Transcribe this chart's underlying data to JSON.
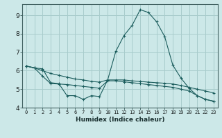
{
  "xlabel": "Humidex (Indice chaleur)",
  "ylabel": "",
  "background_color": "#cce8e8",
  "line_color": "#1a5c5c",
  "grid_color": "#a8cccc",
  "xlim": [
    -0.5,
    23.5
  ],
  "ylim": [
    4.0,
    9.6
  ],
  "yticks": [
    4,
    5,
    6,
    7,
    8,
    9
  ],
  "xticks": [
    0,
    1,
    2,
    3,
    4,
    5,
    6,
    7,
    8,
    9,
    10,
    11,
    12,
    13,
    14,
    15,
    16,
    17,
    18,
    19,
    20,
    21,
    22,
    23
  ],
  "line_top_x": [
    0,
    1,
    2,
    3,
    4,
    5,
    6,
    7,
    8,
    9,
    10,
    11,
    12,
    13,
    14,
    15,
    16,
    17,
    18,
    19,
    20,
    21,
    22,
    23
  ],
  "line_top_y": [
    6.25,
    6.15,
    6.0,
    5.85,
    5.75,
    5.65,
    5.55,
    5.5,
    5.42,
    5.38,
    5.5,
    5.5,
    5.5,
    5.45,
    5.42,
    5.38,
    5.35,
    5.32,
    5.28,
    5.2,
    5.1,
    5.0,
    4.9,
    4.8
  ],
  "line_mid_x": [
    0,
    1,
    2,
    3,
    4,
    5,
    6,
    7,
    8,
    9,
    10,
    11,
    12,
    13,
    14,
    15,
    16,
    17,
    18,
    19,
    20,
    21,
    22,
    23
  ],
  "line_mid_y": [
    6.25,
    6.15,
    5.7,
    5.3,
    5.28,
    5.25,
    5.2,
    5.15,
    5.1,
    5.05,
    5.45,
    5.45,
    5.4,
    5.35,
    5.3,
    5.25,
    5.2,
    5.15,
    5.1,
    5.0,
    4.9,
    4.65,
    4.45,
    4.35
  ],
  "line_peak_x": [
    0,
    1,
    2,
    3,
    4,
    5,
    6,
    7,
    8,
    9,
    10,
    11,
    12,
    13,
    14,
    15,
    16,
    17,
    18,
    19,
    20,
    21,
    22,
    23
  ],
  "line_peak_y": [
    6.25,
    6.15,
    6.1,
    5.35,
    5.3,
    4.65,
    4.65,
    4.45,
    4.65,
    4.6,
    5.5,
    7.05,
    7.9,
    8.45,
    9.3,
    9.15,
    8.65,
    7.85,
    6.3,
    5.6,
    5.05,
    4.65,
    4.45,
    4.35
  ]
}
